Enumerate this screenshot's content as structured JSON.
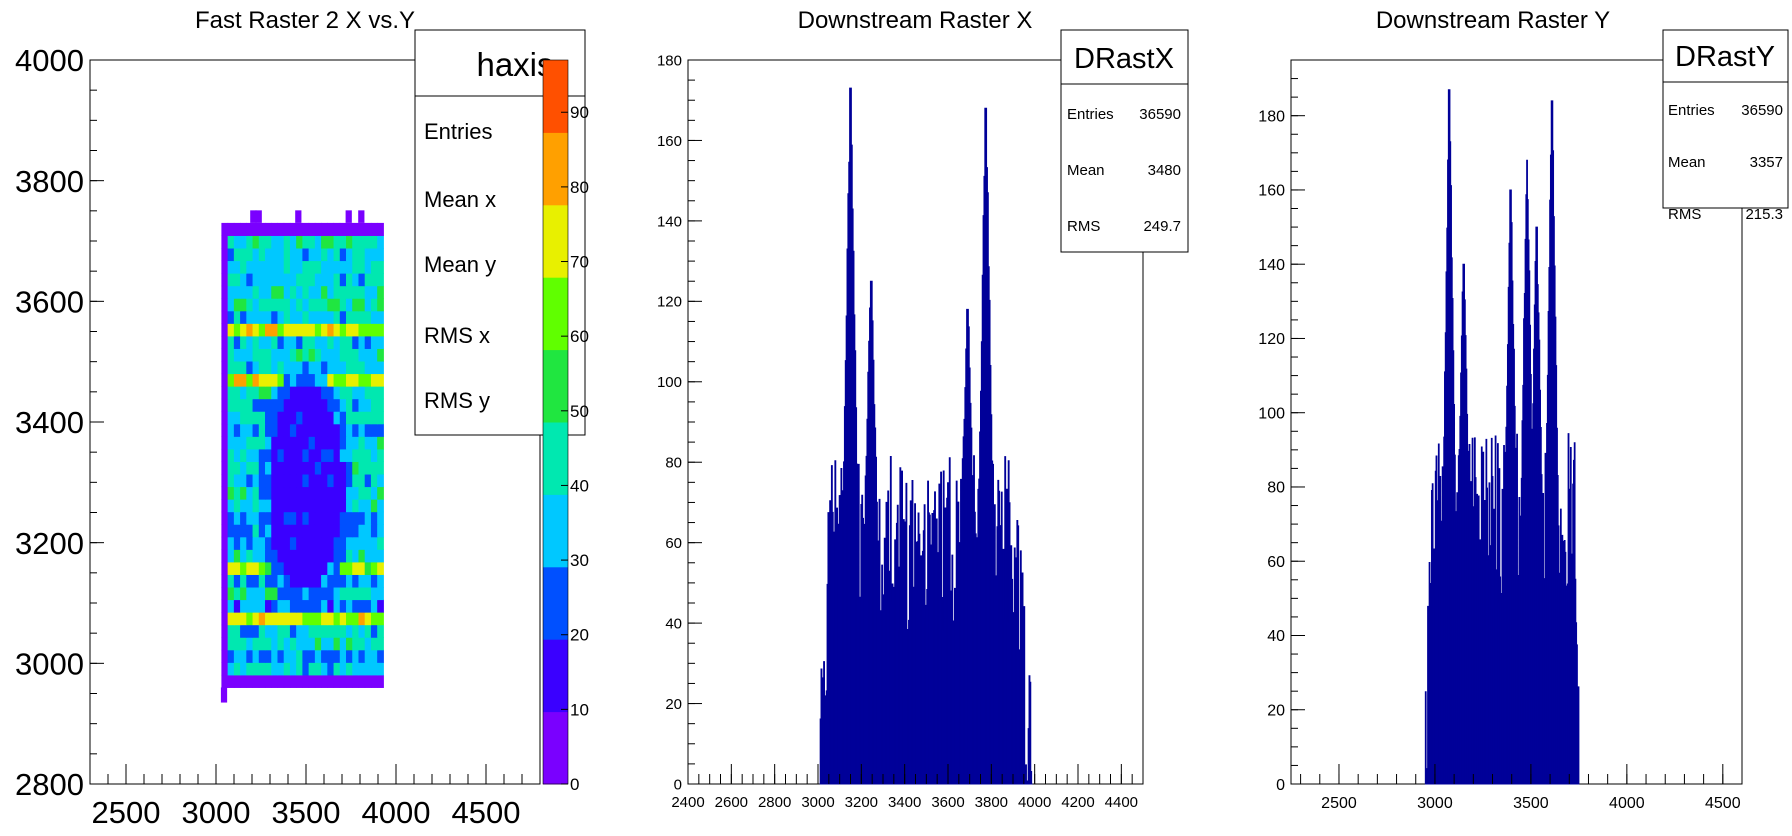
{
  "chart_data": [
    {
      "type": "heatmap",
      "title": "Fast Raster 2 X vs.Y",
      "xlim": [
        2300,
        4800
      ],
      "ylim": [
        2800,
        4000
      ],
      "xticks": [
        "2500",
        "3000",
        "3500",
        "4000",
        "4500"
      ],
      "yticks": [
        "2800",
        "3000",
        "3200",
        "3400",
        "3600",
        "3800",
        "4000"
      ],
      "x_range_filled": [
        3030,
        3930
      ],
      "y_range_filled": [
        2960,
        3730
      ],
      "z_range": [
        0,
        97
      ],
      "color_scale_ticks": [
        "0",
        "10",
        "20",
        "30",
        "40",
        "50",
        "60",
        "70",
        "80",
        "90"
      ],
      "row_means": [
        2,
        38,
        30,
        40,
        36,
        70,
        28,
        40,
        32,
        68,
        42,
        38,
        30,
        34,
        40,
        44,
        36,
        46,
        38,
        40,
        32,
        40,
        36,
        44,
        70,
        38,
        42,
        36,
        72,
        36,
        44,
        40,
        36,
        40,
        34,
        44,
        8
      ],
      "center_hole": {
        "x": 3500,
        "y": 3290,
        "rx": 210,
        "ry": 170,
        "value": 12
      },
      "stats_box": {
        "name": "haxis",
        "labels": [
          "Entries",
          "Mean x",
          "Mean y",
          "RMS x",
          "RMS y"
        ]
      }
    },
    {
      "type": "bar",
      "title": "Downstream Raster X",
      "xlim": [
        2400,
        4500
      ],
      "ylim": [
        0,
        180
      ],
      "xticks": [
        "2400",
        "2600",
        "2800",
        "3000",
        "3200",
        "3400",
        "3600",
        "3800",
        "4000",
        "4200",
        "4400"
      ],
      "yticks": [
        "0",
        "20",
        "40",
        "60",
        "80",
        "100",
        "120",
        "140",
        "160",
        "180"
      ],
      "color": "#000099",
      "bins": {
        "x_start": 3010,
        "x_end": 3990,
        "count": 245
      },
      "peaks": [
        {
          "x": 3150,
          "y": 173
        },
        {
          "x": 3775,
          "y": 168
        },
        {
          "x": 3245,
          "y": 125
        },
        {
          "x": 3690,
          "y": 118
        }
      ],
      "plateau": {
        "x": [
          3060,
          3900
        ],
        "mean": 60,
        "spread": 22
      },
      "stats_box": {
        "name": "DRastX",
        "rows": [
          {
            "label": "Entries",
            "value": "36590"
          },
          {
            "label": "Mean",
            "value": "3480"
          },
          {
            "label": "RMS",
            "value": "249.7"
          }
        ]
      }
    },
    {
      "type": "bar",
      "title": "Downstream Raster Y",
      "xlim": [
        2250,
        4600
      ],
      "ylim": [
        0,
        195
      ],
      "xticks": [
        "2500",
        "3000",
        "3500",
        "4000",
        "4500"
      ],
      "yticks": [
        "0",
        "20",
        "40",
        "60",
        "80",
        "100",
        "120",
        "140",
        "160",
        "180"
      ],
      "color": "#000099",
      "bins": {
        "x_start": 2950,
        "x_end": 3750,
        "count": 200
      },
      "peaks": [
        {
          "x": 3075,
          "y": 187
        },
        {
          "x": 3610,
          "y": 184
        },
        {
          "x": 3480,
          "y": 168
        },
        {
          "x": 3395,
          "y": 160
        },
        {
          "x": 3150,
          "y": 140
        },
        {
          "x": 3530,
          "y": 150
        }
      ],
      "plateau": {
        "x": [
          2990,
          3730
        ],
        "mean": 70,
        "spread": 25
      },
      "stats_box": {
        "name": "DRastY",
        "rows": [
          {
            "label": "Entries",
            "value": "36590"
          },
          {
            "label": "Mean",
            "value": "3357"
          },
          {
            "label": "RMS",
            "value": "215.3"
          }
        ]
      }
    }
  ]
}
